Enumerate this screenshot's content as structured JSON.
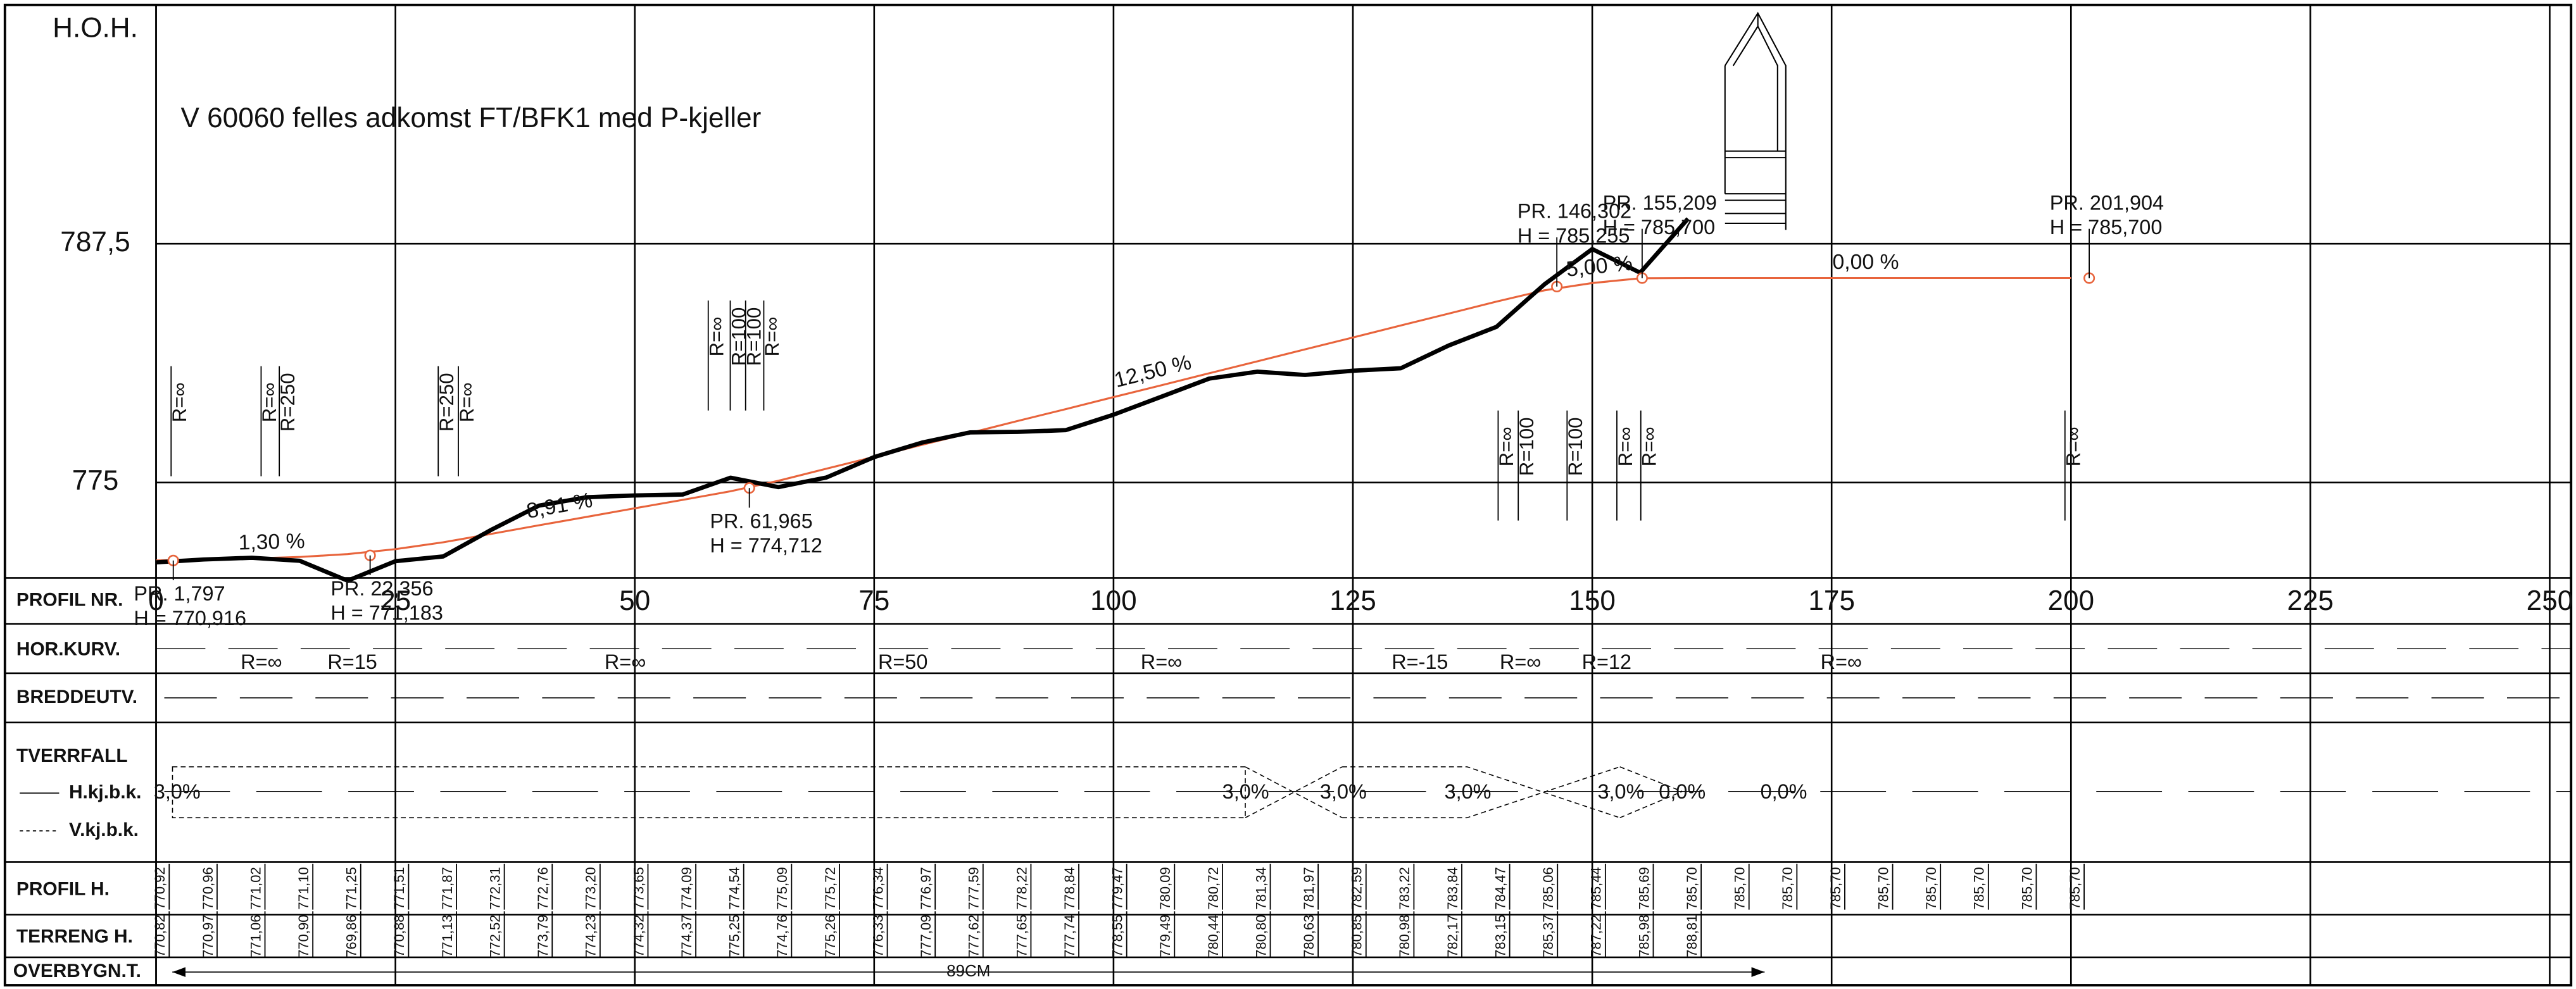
{
  "chart_data": {
    "type": "profile",
    "title": "V 60060 felles adkomst FT/BFK1 med P-kjeller",
    "y_label": "H.O.H.",
    "x_label": "PROFIL NR.",
    "xlim": [
      0,
      250
    ],
    "ylim": [
      770,
      800
    ],
    "xticks": [
      0,
      25,
      50,
      75,
      100,
      125,
      150,
      175,
      200,
      225,
      250
    ],
    "yticks": [
      775,
      {
        "value": 787.5,
        "label": "787,5"
      }
    ],
    "x": [
      0,
      5,
      10,
      15,
      20,
      25,
      30,
      35,
      40,
      45,
      50,
      55,
      60,
      65,
      70,
      75,
      80,
      85,
      90,
      95,
      100,
      105,
      110,
      115,
      120,
      125,
      130,
      135,
      140,
      145,
      150,
      155,
      160,
      165,
      170,
      175,
      180,
      185,
      190,
      195,
      200
    ],
    "series": [
      {
        "name": "PROFIL H.",
        "color": "#e8643c",
        "values": [
          770.92,
          770.96,
          771.02,
          771.1,
          771.25,
          771.51,
          771.87,
          772.31,
          772.76,
          773.2,
          773.65,
          774.09,
          774.54,
          775.09,
          775.72,
          776.34,
          776.97,
          777.59,
          778.22,
          778.84,
          779.47,
          780.09,
          780.72,
          781.34,
          781.97,
          782.59,
          783.22,
          783.84,
          784.47,
          785.06,
          785.44,
          785.69,
          785.7,
          785.7,
          785.7,
          785.7,
          785.7,
          785.7,
          785.7,
          785.7,
          785.7
        ],
        "value_labels": [
          "770,92",
          "770,96",
          "771,02",
          "771,10",
          "771,25",
          "771,51",
          "771,87",
          "772,31",
          "772,76",
          "773,20",
          "773,65",
          "774,09",
          "774,54",
          "775,09",
          "775,72",
          "776,34",
          "776,97",
          "777,59",
          "778,22",
          "778,84",
          "779,47",
          "780,09",
          "780,72",
          "781,34",
          "781,97",
          "782,59",
          "783,22",
          "783,84",
          "784,47",
          "785,06",
          "785,44",
          "785,69",
          "785,70",
          "785,70",
          "785,70",
          "785,70",
          "785,70",
          "785,70",
          "785,70",
          "785,70",
          "785,70"
        ]
      },
      {
        "name": "TERRENG H.",
        "color": "#000000",
        "values": [
          770.82,
          770.97,
          771.06,
          770.9,
          769.86,
          770.88,
          771.13,
          772.52,
          773.79,
          774.23,
          774.32,
          774.37,
          775.25,
          774.76,
          775.26,
          776.33,
          777.09,
          777.62,
          777.65,
          777.74,
          778.55,
          779.49,
          780.44,
          780.8,
          780.63,
          780.85,
          780.98,
          782.17,
          783.15,
          785.37,
          787.22,
          785.98,
          788.81,
          null,
          null,
          null,
          null,
          null,
          null,
          null,
          null
        ],
        "value_labels": [
          "770,82",
          "770,97",
          "771,06",
          "770,90",
          "769,86",
          "770,88",
          "771,13",
          "772,52",
          "773,79",
          "774,23",
          "774,32",
          "774,37",
          "775,25",
          "774,76",
          "775,26",
          "776,33",
          "777,09",
          "777,62",
          "777,65",
          "777,74",
          "778,55",
          "779,49",
          "780,44",
          "780,80",
          "780,63",
          "780,85",
          "780,98",
          "782,17",
          "783,15",
          "785,37",
          "787,22",
          "785,98",
          "788,81",
          null,
          null,
          null,
          null,
          null,
          null,
          null,
          null
        ]
      }
    ],
    "grade_line": {
      "color": "#e8643c",
      "points": [
        {
          "x": 1.797,
          "y": 770.916,
          "label": "PR. 1,797",
          "h_label": "H = 770,916"
        },
        {
          "x": 22.356,
          "y": 771.183,
          "label": "PR. 22,356",
          "h_label": "H = 771,183"
        },
        {
          "x": 61.965,
          "y": 774.712,
          "label": "PR. 61,965",
          "h_label": "H = 774,712"
        },
        {
          "x": 146.302,
          "y": 785.255,
          "label": "PR. 146,302",
          "h_label": "H = 785,255"
        },
        {
          "x": 155.209,
          "y": 785.7,
          "label": "PR. 155,209",
          "h_label": "H = 785,700"
        },
        {
          "x": 201.904,
          "y": 785.7,
          "label": "PR. 201,904",
          "h_label": "H = 785,700"
        }
      ],
      "grades": [
        "1,30 %",
        "8,91 %",
        "12,50 %",
        "5,00 %",
        "0,00 %"
      ]
    },
    "curve_labels": [
      {
        "x": 2.6,
        "label": "R=∞"
      },
      {
        "x": 12,
        "label": "R=∞"
      },
      {
        "x": 13.9,
        "label": "R=250"
      },
      {
        "x": 30.5,
        "label": "R=250"
      },
      {
        "x": 32.6,
        "label": "R=∞"
      },
      {
        "x": 58.7,
        "label": "R=∞"
      },
      {
        "x": 61,
        "label": "R=100"
      },
      {
        "x": 62.6,
        "label": "R=100"
      },
      {
        "x": 64.5,
        "label": "R=∞"
      },
      {
        "x": 141.2,
        "label": "R=∞"
      },
      {
        "x": 143.3,
        "label": "R=100"
      },
      {
        "x": 148.4,
        "label": "R=100"
      },
      {
        "x": 153.6,
        "label": "R=∞"
      },
      {
        "x": 156.1,
        "label": "R=∞"
      },
      {
        "x": 200.4,
        "label": "R=∞"
      }
    ]
  },
  "bands": {
    "hor_kurv": {
      "label": "HOR.KURV.",
      "items": [
        {
          "x": 11,
          "label": "R=∞"
        },
        {
          "x": 20.5,
          "label": "R=15"
        },
        {
          "x": 49,
          "label": "R=∞"
        },
        {
          "x": 78,
          "label": "R=50"
        },
        {
          "x": 105,
          "label": "R=∞"
        },
        {
          "x": 132,
          "label": "R=-15"
        },
        {
          "x": 142.5,
          "label": "R=∞"
        },
        {
          "x": 151.5,
          "label": "R=12"
        },
        {
          "x": 176,
          "label": "R=∞"
        }
      ]
    },
    "breddeutv": {
      "label": "BREDDEUTV."
    },
    "tverrfall": {
      "label": "TVERRFALL",
      "sub_labels": [
        "H.kj.b.k.",
        "V.kj.b.k."
      ],
      "items": [
        {
          "x": 2.2,
          "label": "3,0%"
        },
        {
          "x": 113.8,
          "label": "3,0%"
        },
        {
          "x": 124,
          "label": "3,0%"
        },
        {
          "x": 137,
          "label": "3,0%"
        },
        {
          "x": 153,
          "label": "3,0%"
        },
        {
          "x": 159.4,
          "label": "0,0%"
        },
        {
          "x": 170,
          "label": "0,0%"
        }
      ]
    },
    "overbygn": {
      "label": "OVERBYGN.T.",
      "text": "89CM",
      "from": 1.7,
      "to": 168
    }
  }
}
